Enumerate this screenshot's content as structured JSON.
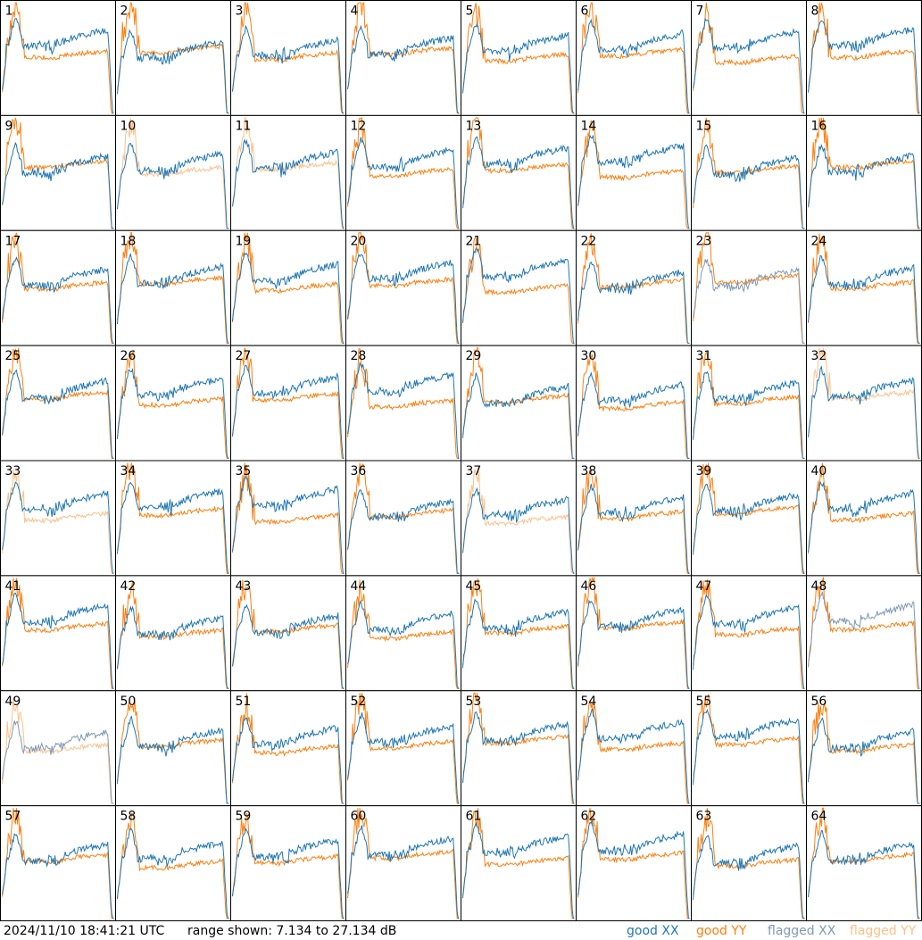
{
  "chart_data": {
    "type": "line",
    "panel_count": 64,
    "panels": [
      "1",
      "2",
      "3",
      "4",
      "5",
      "6",
      "7",
      "8",
      "9",
      "10",
      "11",
      "12",
      "13",
      "14",
      "15",
      "16",
      "17",
      "18",
      "19",
      "20",
      "21",
      "22",
      "23",
      "24",
      "25",
      "26",
      "27",
      "28",
      "29",
      "30",
      "31",
      "32",
      "33",
      "34",
      "35",
      "36",
      "37",
      "38",
      "39",
      "40",
      "41",
      "42",
      "43",
      "44",
      "45",
      "46",
      "47",
      "48",
      "49",
      "50",
      "51",
      "52",
      "53",
      "54",
      "55",
      "56",
      "57",
      "58",
      "59",
      "60",
      "61",
      "62",
      "63",
      "64"
    ],
    "ylim": [
      7.134,
      27.134
    ],
    "y_unit": "dB",
    "panel_state": {
      "good": [
        1,
        2,
        3,
        4,
        5,
        7,
        8,
        12,
        13,
        14,
        15,
        16,
        17,
        18,
        19,
        20,
        21,
        22,
        24,
        25,
        26,
        27,
        29,
        30,
        31,
        34,
        35,
        36,
        38,
        39,
        40,
        41,
        42,
        43,
        44,
        45,
        46,
        47,
        50,
        51,
        52,
        53,
        54,
        55,
        56,
        57,
        58,
        59,
        60,
        61,
        62,
        64
      ],
      "flagged_xx": [
        23,
        48,
        49
      ],
      "flagged_yy": [
        10,
        11,
        32,
        33,
        37,
        49
      ]
    },
    "series": [
      {
        "name": "good XX",
        "color": "#1f77b4"
      },
      {
        "name": "good YY",
        "color": "#ff7f0e"
      },
      {
        "name": "flagged XX",
        "color": "#7f9ab5"
      },
      {
        "name": "flagged YY",
        "color": "#ffc08a"
      }
    ]
  },
  "footer": {
    "timestamp": "2024/11/10 18:41:21 UTC",
    "range_text": "range shown: 7.134 to 27.134 dB"
  },
  "legend": {
    "good_xx": "good XX",
    "good_yy": "good YY",
    "flagged_xx": "flagged XX",
    "flagged_yy": "flagged YY"
  },
  "colors": {
    "good_xx": "#1f77b4",
    "good_yy": "#ff7f0e",
    "flagged_xx": "#7f9ab5",
    "flagged_yy": "#ffc08a",
    "grid": "#000000"
  }
}
